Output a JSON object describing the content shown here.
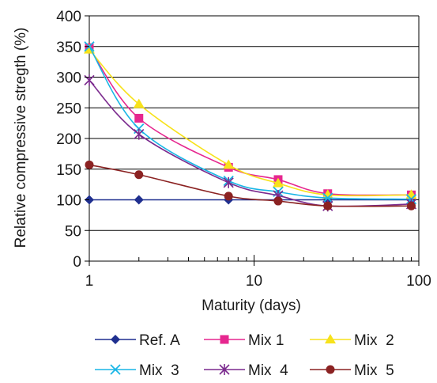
{
  "chart_data": {
    "type": "line",
    "xscale": "log",
    "xlim": [
      1,
      100
    ],
    "ylim": [
      0,
      400
    ],
    "xticks": [
      1,
      10,
      100
    ],
    "yticks": [
      0,
      50,
      100,
      150,
      200,
      250,
      300,
      350,
      400
    ],
    "xlabel": "Maturity (days)",
    "ylabel": "Relative compressive stregth (%)",
    "grid": "horizontal",
    "legend_position": "bottom",
    "series": [
      {
        "name": "Ref. A",
        "color": "#1f2f8f",
        "marker": "diamond",
        "x": [
          1,
          2,
          7,
          14,
          28,
          90
        ],
        "y": [
          100,
          100,
          100,
          100,
          100,
          100
        ]
      },
      {
        "name": "Mix 1",
        "color": "#e6278f",
        "marker": "square",
        "x": [
          1,
          2,
          7,
          14,
          28,
          90
        ],
        "y": [
          348,
          233,
          153,
          133,
          110,
          108
        ]
      },
      {
        "name": "Mix  2",
        "color": "#f7e21b",
        "marker": "triangle",
        "x": [
          1,
          2,
          7,
          14,
          28,
          90
        ],
        "y": [
          345,
          256,
          157,
          127,
          108,
          108
        ]
      },
      {
        "name": "Mix  3",
        "color": "#19b6e6",
        "marker": "x",
        "x": [
          1,
          2,
          7,
          14,
          28,
          90
        ],
        "y": [
          350,
          216,
          131,
          113,
          103,
          101
        ]
      },
      {
        "name": "Mix  4",
        "color": "#7b2a8e",
        "marker": "star",
        "x": [
          1,
          2,
          7,
          14,
          28,
          90
        ],
        "y": [
          295,
          207,
          128,
          107,
          90,
          93
        ]
      },
      {
        "name": "Mix  5",
        "color": "#8b2222",
        "marker": "circle",
        "x": [
          1,
          2,
          7,
          14,
          28,
          90
        ],
        "y": [
          157,
          141,
          106,
          98,
          90,
          90
        ]
      }
    ]
  }
}
